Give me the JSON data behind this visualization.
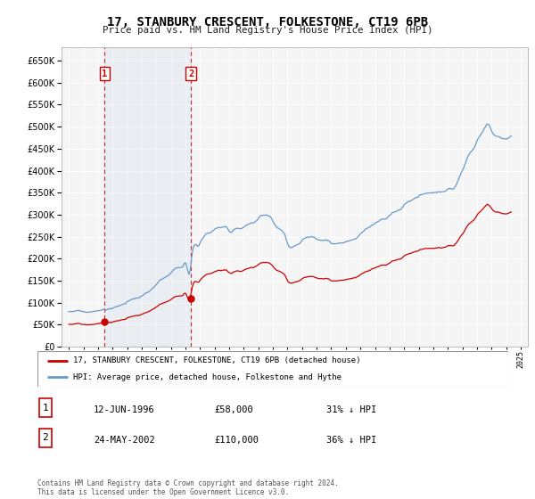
{
  "title": "17, STANBURY CRESCENT, FOLKESTONE, CT19 6PB",
  "subtitle": "Price paid vs. HM Land Registry's House Price Index (HPI)",
  "ylabel_ticks": [
    0,
    50000,
    100000,
    150000,
    200000,
    250000,
    300000,
    350000,
    400000,
    450000,
    500000,
    550000,
    600000,
    650000
  ],
  "ylim": [
    0,
    680000
  ],
  "xlim_start": 1993.5,
  "xlim_end": 2025.5,
  "transaction1_date": 1996.45,
  "transaction1_price": 58000,
  "transaction1_label": "12-JUN-1996",
  "transaction1_price_str": "£58,000",
  "transaction1_pct": "31% ↓ HPI",
  "transaction2_date": 2002.38,
  "transaction2_price": 110000,
  "transaction2_label": "24-MAY-2002",
  "transaction2_price_str": "£110,000",
  "transaction2_pct": "36% ↓ HPI",
  "red_color": "#cc0000",
  "blue_color": "#6699cc",
  "legend_label_red": "17, STANBURY CRESCENT, FOLKESTONE, CT19 6PB (detached house)",
  "legend_label_blue": "HPI: Average price, detached house, Folkestone and Hythe",
  "footer": "Contains HM Land Registry data © Crown copyright and database right 2024.\nThis data is licensed under the Open Government Licence v3.0.",
  "background_color": "#ffffff",
  "plot_bg_color": "#f5f5f5"
}
